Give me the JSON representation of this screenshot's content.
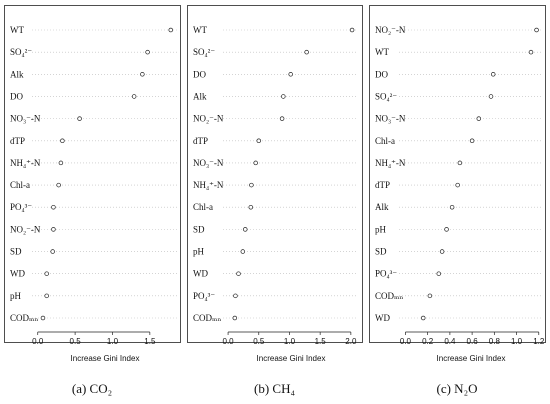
{
  "chart_data": [
    {
      "type": "scatter",
      "caption": "(a) CO₂",
      "xlabel": "Increase Gini Index",
      "xlim": [
        -0.05,
        1.85
      ],
      "xticks": [
        "0.0",
        "0.5",
        "1.0",
        "1.5"
      ],
      "xtick_values": [
        0,
        0.5,
        1.0,
        1.5
      ],
      "categories": [
        "WT",
        "SO₄²⁻",
        "Alk",
        "DO",
        "NO₃⁻-N",
        "dTP",
        "NH₄⁺-N",
        "Chl-a",
        "PO₄³⁻",
        "NO₂⁻-N",
        "SD",
        "WD",
        "pH",
        "CODₘₙ"
      ],
      "values": [
        1.78,
        1.47,
        1.4,
        1.29,
        0.56,
        0.33,
        0.31,
        0.28,
        0.21,
        0.21,
        0.2,
        0.12,
        0.12,
        0.07
      ]
    },
    {
      "type": "scatter",
      "caption": "(b) CH₄",
      "xlabel": "Increase Gini Index",
      "xlim": [
        -0.05,
        2.1
      ],
      "xticks": [
        "0.0",
        "0.5",
        "1.0",
        "1.5",
        "2.0"
      ],
      "xtick_values": [
        0,
        0.5,
        1.0,
        1.5,
        2.0
      ],
      "categories": [
        "WT",
        "SO₄²⁻",
        "DO",
        "Alk",
        "NO₂⁻-N",
        "dTP",
        "NO₃⁻-N",
        "NH₄⁺-N",
        "Chl-a",
        "SD",
        "pH",
        "WD",
        "PO₄³⁻",
        "CODₘₙ"
      ],
      "values": [
        2.02,
        1.28,
        1.02,
        0.9,
        0.88,
        0.5,
        0.45,
        0.38,
        0.37,
        0.28,
        0.24,
        0.17,
        0.12,
        0.11
      ]
    },
    {
      "type": "scatter",
      "caption": "(c) N₂O",
      "xlabel": "Increase Gini Index",
      "xlim": [
        -0.04,
        1.22
      ],
      "xticks": [
        "0.0",
        "0.2",
        "0.4",
        "0.6",
        "0.8",
        "1.0",
        "1.2"
      ],
      "xtick_values": [
        0,
        0.2,
        0.4,
        0.6,
        0.8,
        1.0,
        1.2
      ],
      "categories": [
        "NO₂⁻-N",
        "WT",
        "DO",
        "SO₄²⁻",
        "NO₃⁻-N",
        "Chl-a",
        "NH₄⁺-N",
        "dTP",
        "Alk",
        "pH",
        "SD",
        "PO₄³⁻",
        "CODₘₙ",
        "WD"
      ],
      "values": [
        1.18,
        1.13,
        0.79,
        0.77,
        0.66,
        0.6,
        0.49,
        0.47,
        0.42,
        0.37,
        0.33,
        0.3,
        0.22,
        0.16
      ]
    }
  ]
}
